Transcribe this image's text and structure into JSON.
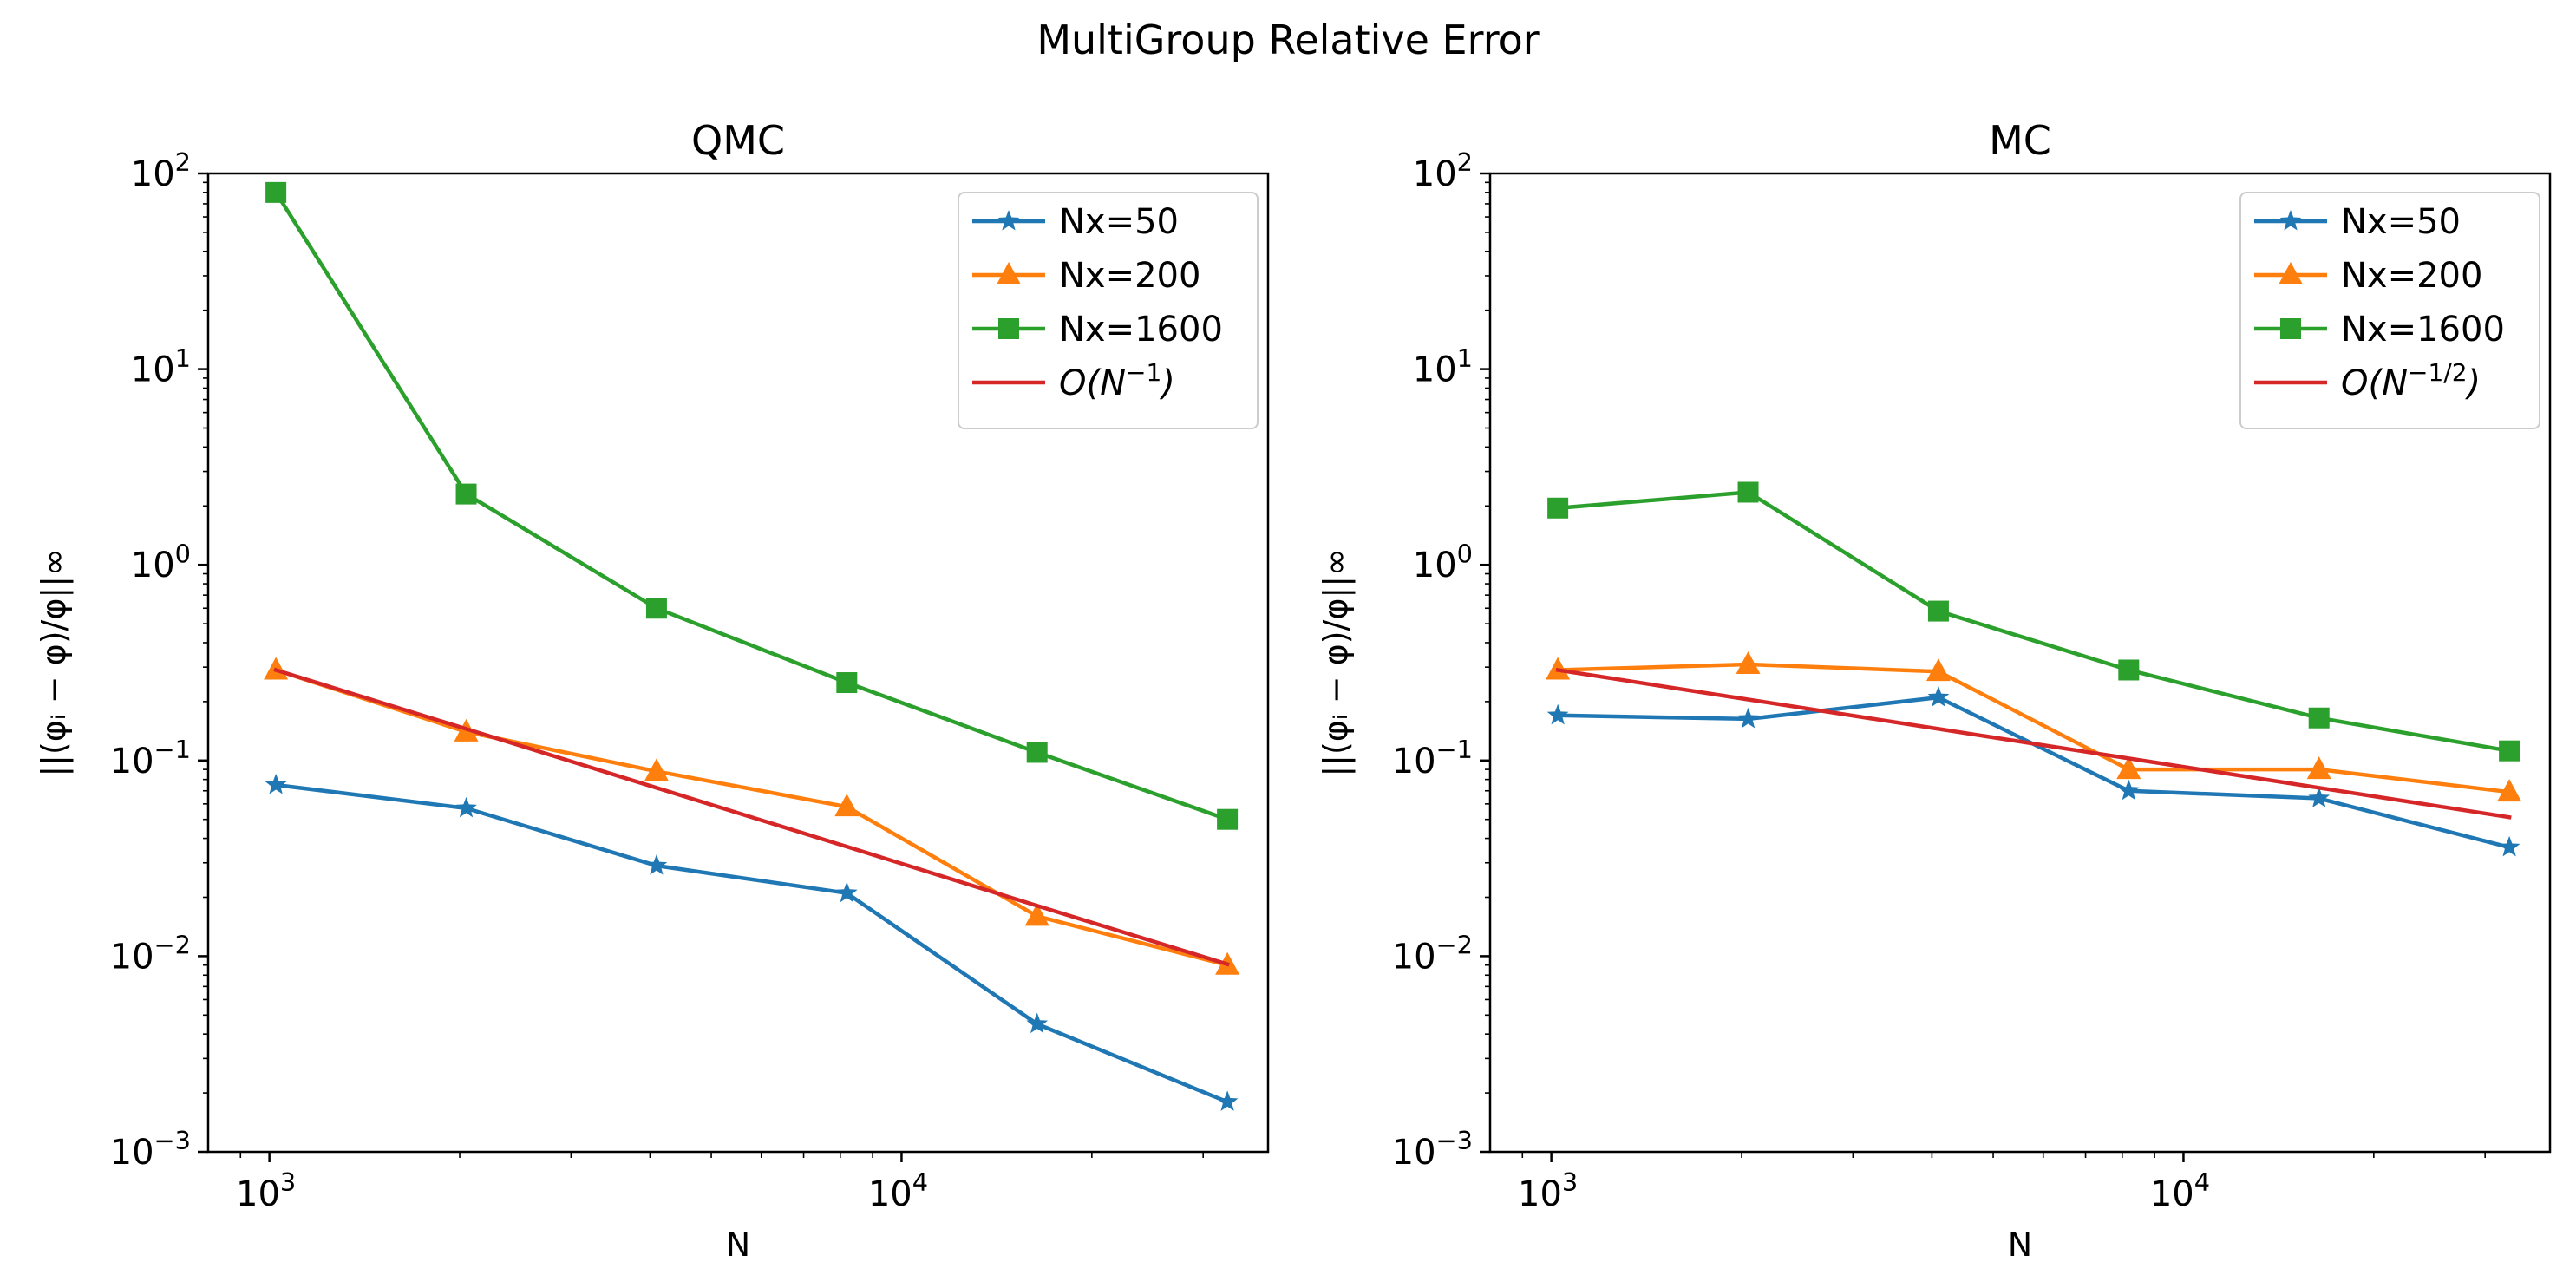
{
  "figure": {
    "title": "MultiGroup Relative Error"
  },
  "chart_data": [
    {
      "type": "line",
      "title": "QMC",
      "xlabel": "N",
      "ylabel": "||(φᵢ − φ)/φ||∞",
      "xscale": "log",
      "yscale": "log",
      "xlim": [
        800,
        38000
      ],
      "ylim": [
        0.001,
        100
      ],
      "x_ticks": [
        {
          "value": 1000,
          "base": "10",
          "exp": "3"
        },
        {
          "value": 10000,
          "base": "10",
          "exp": "4"
        }
      ],
      "y_ticks": [
        {
          "value": 0.001,
          "base": "10",
          "exp": "−3"
        },
        {
          "value": 0.01,
          "base": "10",
          "exp": "−2"
        },
        {
          "value": 0.1,
          "base": "10",
          "exp": "−1"
        },
        {
          "value": 1,
          "base": "10",
          "exp": "0"
        },
        {
          "value": 10,
          "base": "10",
          "exp": "1"
        },
        {
          "value": 100,
          "base": "10",
          "exp": "2"
        }
      ],
      "x": [
        1024,
        2048,
        4096,
        8192,
        16384,
        32768
      ],
      "grid": false,
      "legend": "top-right",
      "series": [
        {
          "name": "Nx=50",
          "color": "#1f77b4",
          "marker": "star",
          "values": [
            0.075,
            0.057,
            0.029,
            0.021,
            0.0045,
            0.0018
          ]
        },
        {
          "name": "Nx=200",
          "color": "#ff7f0e",
          "marker": "triangle",
          "values": [
            0.29,
            0.14,
            0.088,
            0.058,
            0.016,
            0.009
          ]
        },
        {
          "name": "Nx=1600",
          "color": "#2ca02c",
          "marker": "square",
          "values": [
            80,
            2.3,
            0.6,
            0.25,
            0.11,
            0.05
          ]
        },
        {
          "name_base": "O(N",
          "name_exp": "−1",
          "name_close": ")",
          "color": "#d62728",
          "marker": "none",
          "values": [
            0.29,
            0.145,
            0.0725,
            0.0363,
            0.0181,
            0.0091
          ]
        }
      ]
    },
    {
      "type": "line",
      "title": "MC",
      "xlabel": "N",
      "ylabel": "||(φᵢ − φ)/φ||∞",
      "xscale": "log",
      "yscale": "log",
      "xlim": [
        800,
        38000
      ],
      "ylim": [
        0.001,
        100
      ],
      "x_ticks": [
        {
          "value": 1000,
          "base": "10",
          "exp": "3"
        },
        {
          "value": 10000,
          "base": "10",
          "exp": "4"
        }
      ],
      "y_ticks": [
        {
          "value": 0.001,
          "base": "10",
          "exp": "−3"
        },
        {
          "value": 0.01,
          "base": "10",
          "exp": "−2"
        },
        {
          "value": 0.1,
          "base": "10",
          "exp": "−1"
        },
        {
          "value": 1,
          "base": "10",
          "exp": "0"
        },
        {
          "value": 10,
          "base": "10",
          "exp": "1"
        },
        {
          "value": 100,
          "base": "10",
          "exp": "2"
        }
      ],
      "x": [
        1024,
        2048,
        4096,
        8192,
        16384,
        32768
      ],
      "grid": false,
      "legend": "top-right",
      "series": [
        {
          "name": "Nx=50",
          "color": "#1f77b4",
          "marker": "star",
          "values": [
            0.17,
            0.163,
            0.21,
            0.07,
            0.064,
            0.036
          ]
        },
        {
          "name": "Nx=200",
          "color": "#ff7f0e",
          "marker": "triangle",
          "values": [
            0.29,
            0.31,
            0.285,
            0.09,
            0.09,
            0.069
          ]
        },
        {
          "name": "Nx=1600",
          "color": "#2ca02c",
          "marker": "square",
          "values": [
            1.95,
            2.35,
            0.58,
            0.29,
            0.165,
            0.112
          ]
        },
        {
          "name_base": "O(N",
          "name_exp": "−1/2",
          "name_close": ")",
          "color": "#d62728",
          "marker": "none",
          "values": [
            0.29,
            0.205,
            0.145,
            0.1025,
            0.0725,
            0.0513
          ]
        }
      ]
    }
  ]
}
